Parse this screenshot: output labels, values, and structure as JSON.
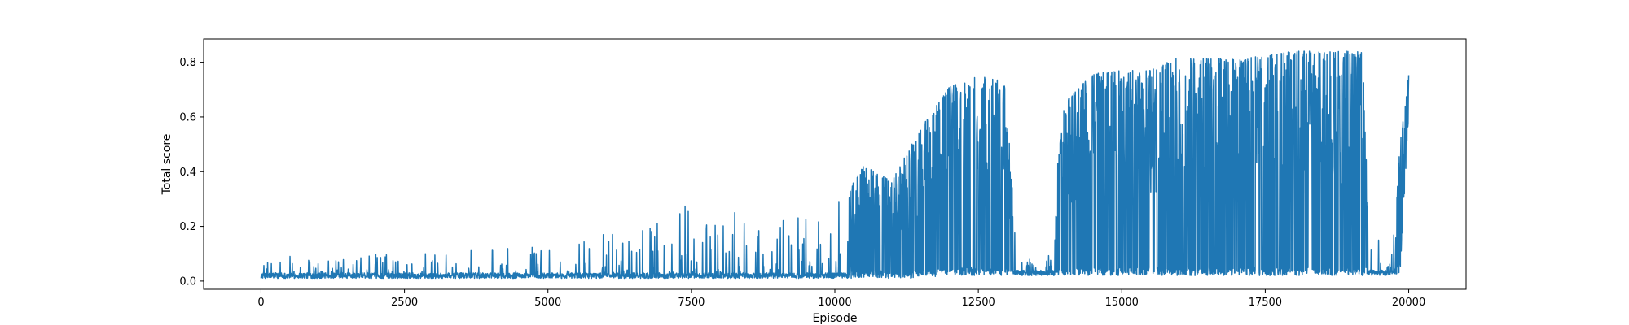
{
  "chart_data": {
    "type": "line",
    "xlabel": "Episode",
    "ylabel": "Total score",
    "xlim": [
      -1000,
      21000
    ],
    "ylim": [
      -0.03,
      0.885
    ],
    "xticks": [
      0,
      2500,
      5000,
      7500,
      10000,
      12500,
      15000,
      17500,
      20000
    ],
    "xtick_labels": [
      "0",
      "2500",
      "5000",
      "7500",
      "10000",
      "12500",
      "15000",
      "17500",
      "20000"
    ],
    "yticks": [
      0.0,
      0.2,
      0.4,
      0.6,
      0.8
    ],
    "ytick_labels": [
      "0.0",
      "0.2",
      "0.4",
      "0.6",
      "0.8"
    ],
    "grid": false,
    "series": [
      {
        "color": "#1f77b4",
        "x_range": [
          0,
          20000
        ],
        "envelope_note_points": [
          {
            "x": 0,
            "low": 0.01,
            "high": 0.1
          },
          {
            "x": 2500,
            "low": 0.01,
            "high": 0.1
          },
          {
            "x": 5000,
            "low": 0.01,
            "high": 0.13
          },
          {
            "x": 7000,
            "low": 0.01,
            "high": 0.22
          },
          {
            "x": 7500,
            "low": 0.01,
            "high": 0.34
          },
          {
            "x": 8000,
            "low": 0.01,
            "high": 0.28
          },
          {
            "x": 9000,
            "low": 0.01,
            "high": 0.24
          },
          {
            "x": 10000,
            "low": 0.01,
            "high": 0.27
          },
          {
            "x": 10500,
            "low": 0.01,
            "high": 0.42
          },
          {
            "x": 11000,
            "low": 0.01,
            "high": 0.37
          },
          {
            "x": 11500,
            "low": 0.01,
            "high": 0.56
          },
          {
            "x": 12000,
            "low": 0.02,
            "high": 0.71
          },
          {
            "x": 12500,
            "low": 0.02,
            "high": 0.75
          },
          {
            "x": 12950,
            "low": 0.02,
            "high": 0.73
          },
          {
            "x": 13200,
            "low": 0.02,
            "high": 0.1
          },
          {
            "x": 13700,
            "low": 0.02,
            "high": 0.08
          },
          {
            "x": 14000,
            "low": 0.02,
            "high": 0.65
          },
          {
            "x": 14500,
            "low": 0.02,
            "high": 0.76
          },
          {
            "x": 15000,
            "low": 0.02,
            "high": 0.77
          },
          {
            "x": 15500,
            "low": 0.02,
            "high": 0.77
          },
          {
            "x": 16000,
            "low": 0.02,
            "high": 0.82
          },
          {
            "x": 17000,
            "low": 0.02,
            "high": 0.81
          },
          {
            "x": 18000,
            "low": 0.02,
            "high": 0.84
          },
          {
            "x": 19200,
            "low": 0.02,
            "high": 0.84
          },
          {
            "x": 19300,
            "low": 0.02,
            "high": 0.18
          },
          {
            "x": 19700,
            "low": 0.02,
            "high": 0.12
          },
          {
            "x": 19850,
            "low": 0.03,
            "high": 0.5
          },
          {
            "x": 20000,
            "low": 0.6,
            "high": 0.77
          }
        ]
      }
    ]
  }
}
